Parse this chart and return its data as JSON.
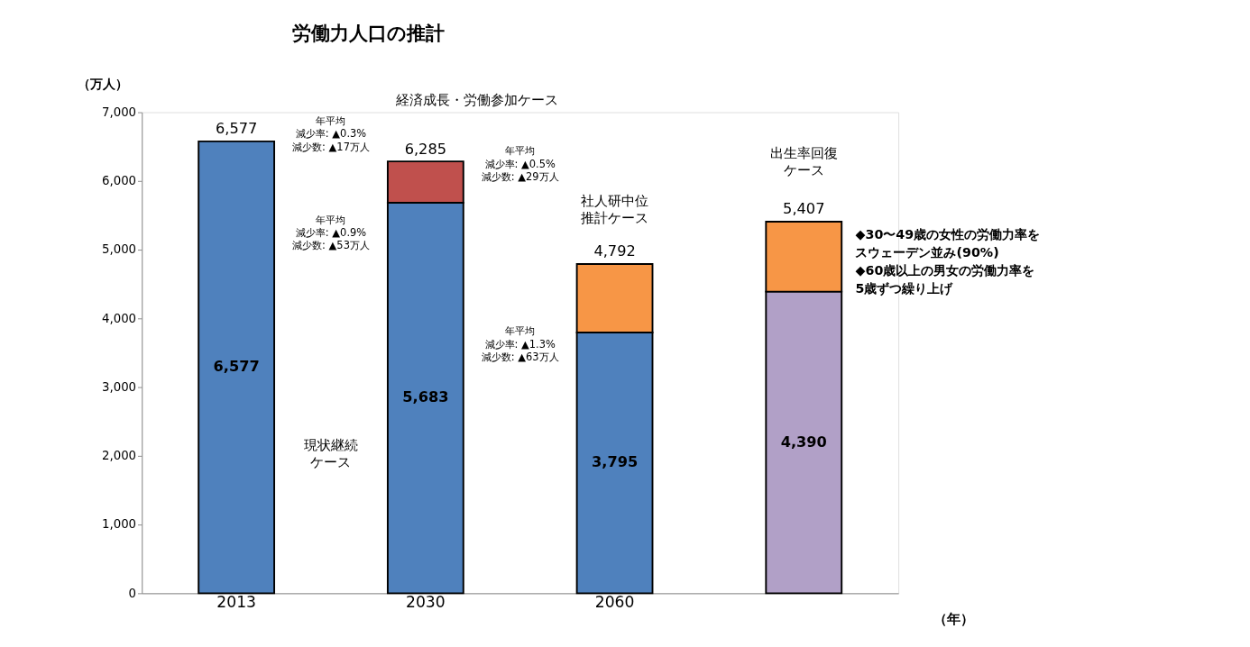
{
  "chart_data": {
    "type": "bar",
    "title": "労働力人口の推計",
    "ylabel": "（万人）",
    "xlabel": "（年）",
    "categories": [
      "2013",
      "2030",
      "2060",
      null
    ],
    "stacked": true,
    "series": [
      {
        "color": "#4f81bd",
        "values": [
          6577,
          5683,
          3795,
          null
        ],
        "value_labels": [
          "6,577",
          "5,683",
          "3,795",
          null
        ]
      },
      {
        "color": "#b1a0c7",
        "values": [
          null,
          null,
          null,
          4390
        ],
        "value_labels": [
          null,
          null,
          null,
          "4,390"
        ]
      },
      {
        "color": "#c0504d",
        "values": [
          null,
          602,
          null,
          null
        ]
      },
      {
        "color": "#f79646",
        "values": [
          null,
          null,
          997,
          1017
        ]
      }
    ],
    "totals": [
      "6,577",
      "6,285",
      "4,792",
      "5,407"
    ],
    "ylim": [
      0,
      7000
    ],
    "yticks": [
      0,
      {
        "value": 1000,
        "label": "1,000"
      },
      {
        "value": 2000,
        "label": "2,000"
      },
      {
        "value": 3000,
        "label": "3,000"
      },
      {
        "value": 4000,
        "label": "4,000"
      },
      {
        "value": 5000,
        "label": "5,000"
      },
      {
        "value": 6000,
        "label": "6,000"
      },
      {
        "value": 7000,
        "label": "7,000"
      }
    ],
    "grid": false,
    "annotations": [
      "年平均",
      "減少率: ▲0.3%",
      "減少数: ▲17万人",
      "年平均",
      "減少率: ▲0.9%",
      "減少数: ▲53万人",
      "年平均",
      "減少率: ▲0.5%",
      "減少数: ▲29万人",
      "年平均",
      "減少率: ▲1.3%",
      "減少数: ▲63万人",
      "経済成長・労働参加ケース",
      "出生率回復",
      "ケース",
      "社人研中位",
      "推計ケース",
      "現状継続",
      "ケース",
      "◆30〜49歳の女性の労働力率を",
      "スウェーデン並み(90%)",
      "◆60歳以上の男女の労働力率を",
      "5歳ずつ繰り上げ"
    ]
  }
}
